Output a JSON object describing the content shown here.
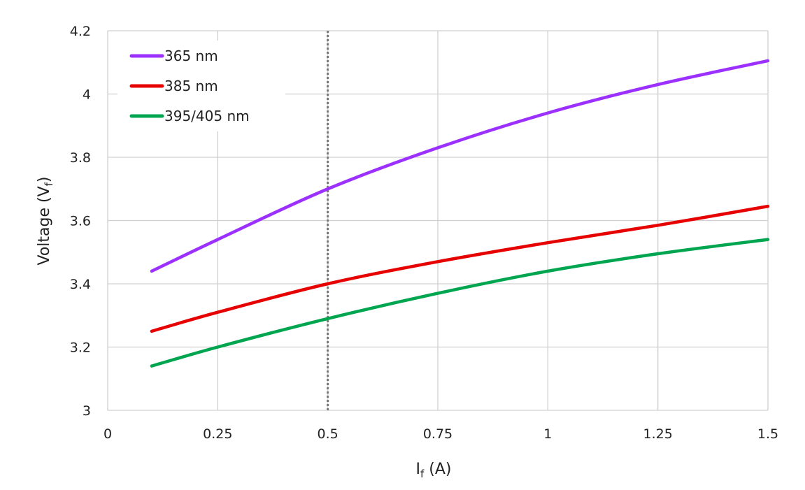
{
  "chart_data": {
    "type": "line",
    "title": "",
    "xlabel": "I",
    "xlabel_sub": "f",
    "xlabel_unit": " (A)",
    "ylabel": "Voltage (V",
    "ylabel_sub": "f",
    "ylabel_end": ")",
    "xlim": [
      0,
      1.5
    ],
    "ylim": [
      3,
      4.2
    ],
    "xticks": [
      "0",
      "0.25",
      "0.5",
      "0.75",
      "1",
      "1.25",
      "1.5"
    ],
    "xtick_values": [
      0,
      0.25,
      0.5,
      0.75,
      1,
      1.25,
      1.5
    ],
    "yticks": [
      "3",
      "3.2",
      "3.4",
      "3.6",
      "3.8",
      "4",
      "4.2"
    ],
    "ytick_values": [
      3,
      3.2,
      3.4,
      3.6,
      3.8,
      4,
      4.2
    ],
    "grid": true,
    "legend_position": "top-left",
    "reference_line": {
      "x": 0.5,
      "style": "dotted"
    },
    "x": [
      0.1,
      0.25,
      0.5,
      0.75,
      1.0,
      1.25,
      1.5
    ],
    "series": [
      {
        "name": "365 nm",
        "color": "#9b30ff",
        "values": [
          3.44,
          3.54,
          3.7,
          3.83,
          3.94,
          4.03,
          4.105
        ]
      },
      {
        "name": "385 nm",
        "color": "#e60000",
        "values": [
          3.25,
          3.31,
          3.4,
          3.47,
          3.53,
          3.585,
          3.645
        ]
      },
      {
        "name": "395/405 nm",
        "color": "#00a550",
        "values": [
          3.14,
          3.2,
          3.29,
          3.37,
          3.44,
          3.495,
          3.54
        ]
      }
    ]
  }
}
